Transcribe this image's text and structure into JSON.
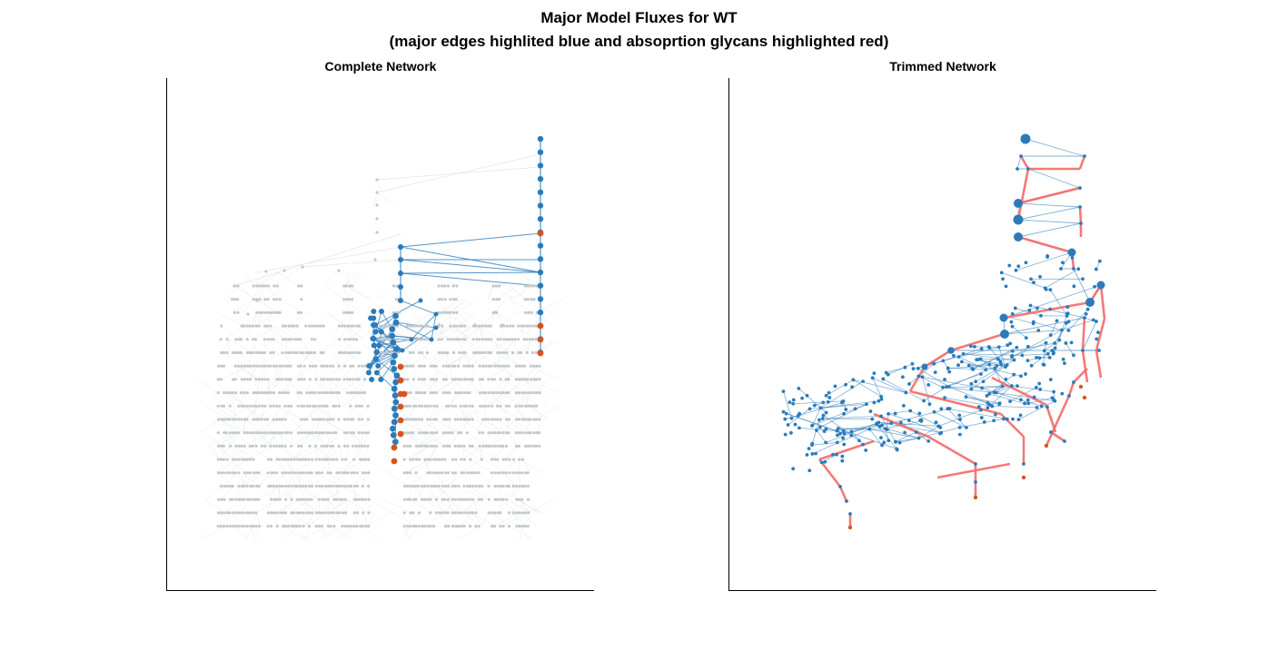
{
  "figure": {
    "title_line1": "Major Model Fluxes for WT",
    "title_line2": "(major edges highlited blue and absoprtion glycans highlighted red)"
  },
  "panels": {
    "left": {
      "title": "Complete Network"
    },
    "right": {
      "title": "Trimmed Network"
    }
  },
  "colors": {
    "node_gray": "#c4c8cb",
    "edge_gray": "#dde3e8",
    "node_blue": "#2b7bba",
    "edge_blue": "#2b7bba",
    "node_red": "#d9531e",
    "edge_red": "#f26a6a",
    "axis": "#000000"
  }
}
